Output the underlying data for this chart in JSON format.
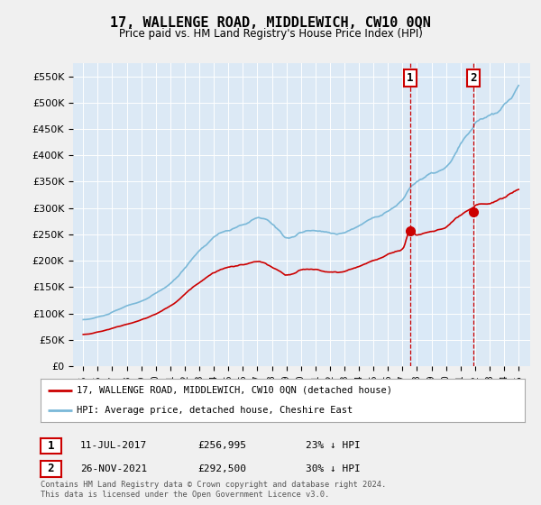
{
  "title": "17, WALLENGE ROAD, MIDDLEWICH, CW10 0QN",
  "subtitle": "Price paid vs. HM Land Registry's House Price Index (HPI)",
  "background_color": "#f0f0f0",
  "plot_background": "#dce9f5",
  "grid_color": "#ffffff",
  "hpi_color": "#7ab8d8",
  "price_color": "#cc0000",
  "sale1_date": "11-JUL-2017",
  "sale1_price": 256995,
  "sale1_pct": "23% ↓ HPI",
  "sale1_x": 2017.53,
  "sale2_date": "26-NOV-2021",
  "sale2_price": 292500,
  "sale2_pct": "30% ↓ HPI",
  "sale2_x": 2021.9,
  "legend_label1": "17, WALLENGE ROAD, MIDDLEWICH, CW10 0QN (detached house)",
  "legend_label2": "HPI: Average price, detached house, Cheshire East",
  "footnote": "Contains HM Land Registry data © Crown copyright and database right 2024.\nThis data is licensed under the Open Government Licence v3.0.",
  "annotation_box_color": "#cc0000",
  "ylabel_ticks": [
    "£0",
    "£50K",
    "£100K",
    "£150K",
    "£200K",
    "£250K",
    "£300K",
    "£350K",
    "£400K",
    "£450K",
    "£500K",
    "£550K"
  ],
  "ytick_vals": [
    0,
    50000,
    100000,
    150000,
    200000,
    250000,
    300000,
    350000,
    400000,
    450000,
    500000,
    550000
  ],
  "ylim": [
    0,
    575000
  ],
  "xlim": [
    1994.3,
    2025.8
  ],
  "shade_color": "#daeaf8"
}
